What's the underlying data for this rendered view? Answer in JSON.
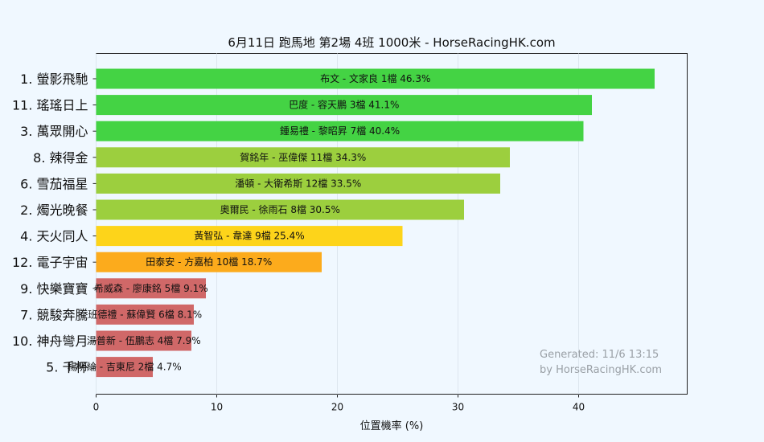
{
  "chart_data": {
    "type": "bar",
    "orientation": "horizontal",
    "title": "6月11日  跑馬地  第2場  4班  1000米 - HorseRacingHK.com",
    "xlabel": "位置機率 (%)",
    "xlim": [
      0,
      49
    ],
    "xticks": [
      0,
      10,
      20,
      30,
      40
    ],
    "grid": "vertical",
    "categories": [
      "1. 螢影飛馳",
      "11. 瑤瑤日上",
      "3. 萬眾開心",
      "8. 辣得金",
      "6. 雪茄福星",
      "2. 燭光晚餐",
      "4. 天火同人",
      "12. 電子宇宙",
      "9. 快樂寶寶",
      "7. 競駿奔騰",
      "10. 神舟彎月",
      "5. 千杯"
    ],
    "values": [
      46.3,
      41.1,
      40.4,
      34.3,
      33.5,
      30.5,
      25.4,
      18.7,
      9.1,
      8.1,
      7.9,
      4.7
    ],
    "bar_labels": [
      "布文 - 文家良 1檔  46.3%",
      "巴度 - 容天鵬 3檔  41.1%",
      "鍾易禮 - 黎昭昇 7檔  40.4%",
      "賀銘年 - 巫偉傑 11檔  34.3%",
      "潘頓 - 大衛希斯 12檔  33.5%",
      "奧爾民 - 徐雨石 8檔  30.5%",
      "黃智弘 - 韋達 9檔  25.4%",
      "田泰安 - 方嘉柏 10檔  18.7%",
      "希威森 - 廖康銘 5檔  9.1%",
      "班德禮 - 蘇偉賢 6檔  8.1%",
      "湯普新 - 伍鵬志 4檔  7.9%",
      "楊明綸 - 吉東尼 2檔  4.7%"
    ],
    "colors": [
      "#44d344",
      "#44d344",
      "#44d344",
      "#9ccf3e",
      "#9ccf3e",
      "#9ccf3e",
      "#fdd41a",
      "#fcab1c",
      "#d06868",
      "#d06868",
      "#d06868",
      "#d06868"
    ],
    "watermark": [
      "Generated: 11/6 13:15",
      "by HorseRacingHK.com"
    ]
  }
}
